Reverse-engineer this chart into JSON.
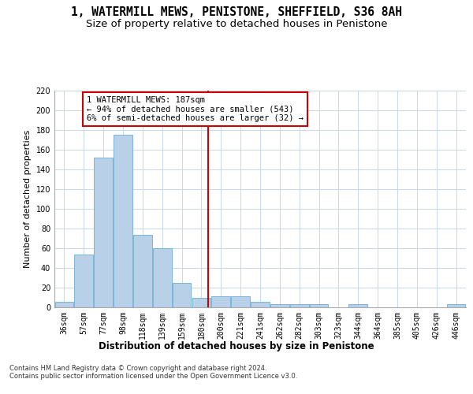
{
  "title": "1, WATERMILL MEWS, PENISTONE, SHEFFIELD, S36 8AH",
  "subtitle": "Size of property relative to detached houses in Penistone",
  "xlabel": "Distribution of detached houses by size in Penistone",
  "ylabel": "Number of detached properties",
  "categories": [
    "36sqm",
    "57sqm",
    "77sqm",
    "98sqm",
    "118sqm",
    "139sqm",
    "159sqm",
    "180sqm",
    "200sqm",
    "221sqm",
    "241sqm",
    "262sqm",
    "282sqm",
    "303sqm",
    "323sqm",
    "344sqm",
    "364sqm",
    "385sqm",
    "405sqm",
    "426sqm",
    "446sqm"
  ],
  "values": [
    6,
    54,
    152,
    175,
    74,
    60,
    25,
    10,
    11,
    11,
    6,
    3,
    3,
    3,
    0,
    3,
    0,
    0,
    0,
    0,
    3
  ],
  "bar_color": "#b8d0e8",
  "bar_edge_color": "#6aaed6",
  "grid_color": "#c8d8ea",
  "background_color": "#ffffff",
  "annotation_text": "1 WATERMILL MEWS: 187sqm\n← 94% of detached houses are smaller (543)\n6% of semi-detached houses are larger (32) →",
  "annotation_box_color": "#ffffff",
  "annotation_box_edge_color": "#cc0000",
  "vline_color": "#cc0000",
  "ylim": [
    0,
    220
  ],
  "yticks": [
    0,
    20,
    40,
    60,
    80,
    100,
    120,
    140,
    160,
    180,
    200,
    220
  ],
  "footer": "Contains HM Land Registry data © Crown copyright and database right 2024.\nContains public sector information licensed under the Open Government Licence v3.0.",
  "title_fontsize": 10.5,
  "subtitle_fontsize": 9.5,
  "xlabel_fontsize": 8.5,
  "ylabel_fontsize": 8,
  "tick_fontsize": 7,
  "annotation_fontsize": 7.5,
  "footer_fontsize": 6
}
